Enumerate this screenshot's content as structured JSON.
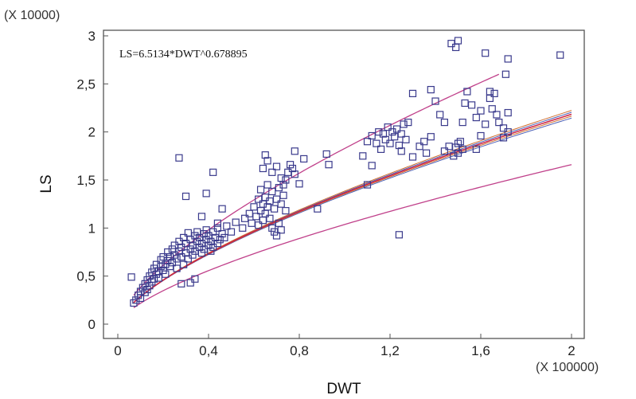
{
  "chart_data": {
    "type": "scatter",
    "title": "",
    "xlabel": "DWT",
    "ylabel": "LS",
    "x_scale_note": "(X 100000)",
    "y_scale_note": "(X 10000)",
    "equation": "LS=6.5134*DWT^0.678895",
    "xlim": [
      0,
      2
    ],
    "ylim": [
      0,
      3
    ],
    "x_ticks": [
      0,
      0.4,
      0.8,
      1.2,
      1.6,
      2
    ],
    "x_tick_labels": [
      "0",
      "0,4",
      "0,8",
      "1,2",
      "1,6",
      "2"
    ],
    "y_ticks": [
      0,
      0.5,
      1,
      1.5,
      2,
      2.5,
      3
    ],
    "y_tick_labels": [
      "0",
      "0,5",
      "1",
      "1,5",
      "2",
      "2,5",
      "3"
    ],
    "grid": false,
    "colors": {
      "points": "#3a3a8c",
      "fit": "#cc2244",
      "confidence": "#4b5fb5",
      "confidence_alt": "#d07030",
      "prediction": "#c0408a",
      "frame": "#555555"
    },
    "fit": {
      "a": 6.5134,
      "b": 0.678895,
      "x_from": 0.07,
      "x_to": 2.0
    },
    "confidence_band": {
      "offsets": [
        -0.04,
        -0.02,
        0.02,
        0.04
      ]
    },
    "prediction_band": {
      "upper_factor": 1.34,
      "lower_factor": 0.76,
      "x_from": 0.07,
      "upper_x_to": 1.68,
      "lower_x_to": 2.0
    },
    "points": [
      [
        0.06,
        0.49
      ],
      [
        0.07,
        0.22
      ],
      [
        0.08,
        0.25
      ],
      [
        0.09,
        0.3
      ],
      [
        0.1,
        0.34
      ],
      [
        0.1,
        0.27
      ],
      [
        0.11,
        0.38
      ],
      [
        0.12,
        0.33
      ],
      [
        0.12,
        0.42
      ],
      [
        0.13,
        0.46
      ],
      [
        0.13,
        0.36
      ],
      [
        0.14,
        0.5
      ],
      [
        0.14,
        0.4
      ],
      [
        0.15,
        0.44
      ],
      [
        0.15,
        0.54
      ],
      [
        0.16,
        0.47
      ],
      [
        0.16,
        0.58
      ],
      [
        0.17,
        0.52
      ],
      [
        0.17,
        0.62
      ],
      [
        0.18,
        0.55
      ],
      [
        0.18,
        0.48
      ],
      [
        0.19,
        0.6
      ],
      [
        0.19,
        0.67
      ],
      [
        0.2,
        0.56
      ],
      [
        0.2,
        0.7
      ],
      [
        0.21,
        0.62
      ],
      [
        0.21,
        0.52
      ],
      [
        0.22,
        0.66
      ],
      [
        0.22,
        0.75
      ],
      [
        0.23,
        0.6
      ],
      [
        0.23,
        0.7
      ],
      [
        0.24,
        0.78
      ],
      [
        0.24,
        0.64
      ],
      [
        0.25,
        0.72
      ],
      [
        0.25,
        0.82
      ],
      [
        0.26,
        0.68
      ],
      [
        0.26,
        0.58
      ],
      [
        0.27,
        0.76
      ],
      [
        0.27,
        0.86
      ],
      [
        0.28,
        0.7
      ],
      [
        0.28,
        0.8
      ],
      [
        0.29,
        0.62
      ],
      [
        0.29,
        0.9
      ],
      [
        0.3,
        0.74
      ],
      [
        0.3,
        0.84
      ],
      [
        0.31,
        0.68
      ],
      [
        0.31,
        0.95
      ],
      [
        0.32,
        0.78
      ],
      [
        0.32,
        0.88
      ],
      [
        0.33,
        0.72
      ],
      [
        0.33,
        0.82
      ],
      [
        0.34,
        0.92
      ],
      [
        0.34,
        0.76
      ],
      [
        0.35,
        0.86
      ],
      [
        0.35,
        0.96
      ],
      [
        0.36,
        0.8
      ],
      [
        0.36,
        0.9
      ],
      [
        0.37,
        0.74
      ],
      [
        0.37,
        0.84
      ],
      [
        0.38,
        0.94
      ],
      [
        0.38,
        0.78
      ],
      [
        0.39,
        0.88
      ],
      [
        0.39,
        0.98
      ],
      [
        0.4,
        0.82
      ],
      [
        0.4,
        0.92
      ],
      [
        0.41,
        0.76
      ],
      [
        0.41,
        0.86
      ],
      [
        0.42,
        0.96
      ],
      [
        0.42,
        0.8
      ],
      [
        0.43,
        0.9
      ],
      [
        0.44,
        0.84
      ],
      [
        0.44,
        1.0
      ],
      [
        0.45,
        0.88
      ],
      [
        0.46,
        0.94
      ],
      [
        0.47,
        0.9
      ],
      [
        0.48,
        1.02
      ],
      [
        0.5,
        0.96
      ],
      [
        0.52,
        1.06
      ],
      [
        0.28,
        0.42
      ],
      [
        0.32,
        0.43
      ],
      [
        0.34,
        0.47
      ],
      [
        0.3,
        1.33
      ],
      [
        0.27,
        1.73
      ],
      [
        0.37,
        1.12
      ],
      [
        0.39,
        1.36
      ],
      [
        0.42,
        1.58
      ],
      [
        0.44,
        1.05
      ],
      [
        0.46,
        1.2
      ],
      [
        0.55,
        1.0
      ],
      [
        0.56,
        1.1
      ],
      [
        0.58,
        1.15
      ],
      [
        0.59,
        1.05
      ],
      [
        0.6,
        1.22
      ],
      [
        0.61,
        1.12
      ],
      [
        0.62,
        1.3
      ],
      [
        0.62,
        1.03
      ],
      [
        0.63,
        1.18
      ],
      [
        0.63,
        1.4
      ],
      [
        0.64,
        1.08
      ],
      [
        0.64,
        1.25
      ],
      [
        0.65,
        1.32
      ],
      [
        0.65,
        1.15
      ],
      [
        0.66,
        1.22
      ],
      [
        0.66,
        1.45
      ],
      [
        0.67,
        1.1
      ],
      [
        0.67,
        1.28
      ],
      [
        0.68,
        1.38
      ],
      [
        0.68,
        1.0
      ],
      [
        0.69,
        0.96
      ],
      [
        0.69,
        1.2
      ],
      [
        0.7,
        0.92
      ],
      [
        0.7,
        1.3
      ],
      [
        0.71,
        1.05
      ],
      [
        0.71,
        1.42
      ],
      [
        0.72,
        1.25
      ],
      [
        0.72,
        0.98
      ],
      [
        0.73,
        1.34
      ],
      [
        0.74,
        1.18
      ],
      [
        0.64,
        1.62
      ],
      [
        0.65,
        1.76
      ],
      [
        0.66,
        1.7
      ],
      [
        0.68,
        1.58
      ],
      [
        0.7,
        1.64
      ],
      [
        0.72,
        1.52
      ],
      [
        0.73,
        1.45
      ],
      [
        0.74,
        1.5
      ],
      [
        0.75,
        1.58
      ],
      [
        0.76,
        1.66
      ],
      [
        0.77,
        1.62
      ],
      [
        0.78,
        1.56
      ],
      [
        0.8,
        1.46
      ],
      [
        0.78,
        1.8
      ],
      [
        0.82,
        1.72
      ],
      [
        0.88,
        1.2
      ],
      [
        0.93,
        1.66
      ],
      [
        0.92,
        1.77
      ],
      [
        1.1,
        1.45
      ],
      [
        1.12,
        1.65
      ],
      [
        1.24,
        0.93
      ],
      [
        1.08,
        1.75
      ],
      [
        1.1,
        1.9
      ],
      [
        1.12,
        1.96
      ],
      [
        1.14,
        1.88
      ],
      [
        1.15,
        2.0
      ],
      [
        1.16,
        1.82
      ],
      [
        1.17,
        1.98
      ],
      [
        1.18,
        1.92
      ],
      [
        1.19,
        2.05
      ],
      [
        1.2,
        1.88
      ],
      [
        1.21,
        2.0
      ],
      [
        1.22,
        1.95
      ],
      [
        1.23,
        2.03
      ],
      [
        1.24,
        1.86
      ],
      [
        1.25,
        1.98
      ],
      [
        1.26,
        2.08
      ],
      [
        1.27,
        1.92
      ],
      [
        1.28,
        2.1
      ],
      [
        1.25,
        1.8
      ],
      [
        1.3,
        1.74
      ],
      [
        1.33,
        1.85
      ],
      [
        1.35,
        1.9
      ],
      [
        1.36,
        1.78
      ],
      [
        1.38,
        1.95
      ],
      [
        1.3,
        2.4
      ],
      [
        1.38,
        2.44
      ],
      [
        1.4,
        2.32
      ],
      [
        1.42,
        2.18
      ],
      [
        1.44,
        2.1
      ],
      [
        1.44,
        1.8
      ],
      [
        1.46,
        1.85
      ],
      [
        1.48,
        1.75
      ],
      [
        1.49,
        1.84
      ],
      [
        1.5,
        1.78
      ],
      [
        1.51,
        1.9
      ],
      [
        1.52,
        1.82
      ],
      [
        1.5,
        1.88
      ],
      [
        1.47,
        2.92
      ],
      [
        1.49,
        2.88
      ],
      [
        1.5,
        2.95
      ],
      [
        1.52,
        2.1
      ],
      [
        1.53,
        2.3
      ],
      [
        1.54,
        2.42
      ],
      [
        1.56,
        2.28
      ],
      [
        1.58,
        2.15
      ],
      [
        1.6,
        2.22
      ],
      [
        1.62,
        2.08
      ],
      [
        1.64,
        2.35
      ],
      [
        1.65,
        2.24
      ],
      [
        1.66,
        2.4
      ],
      [
        1.67,
        2.18
      ],
      [
        1.68,
        2.1
      ],
      [
        1.7,
        2.04
      ],
      [
        1.72,
        2.0
      ],
      [
        1.71,
        2.6
      ],
      [
        1.72,
        2.76
      ],
      [
        1.64,
        2.42
      ],
      [
        1.58,
        1.82
      ],
      [
        1.6,
        1.96
      ],
      [
        1.72,
        2.2
      ],
      [
        1.7,
        1.94
      ],
      [
        1.62,
        2.82
      ],
      [
        1.95,
        2.8
      ]
    ]
  }
}
